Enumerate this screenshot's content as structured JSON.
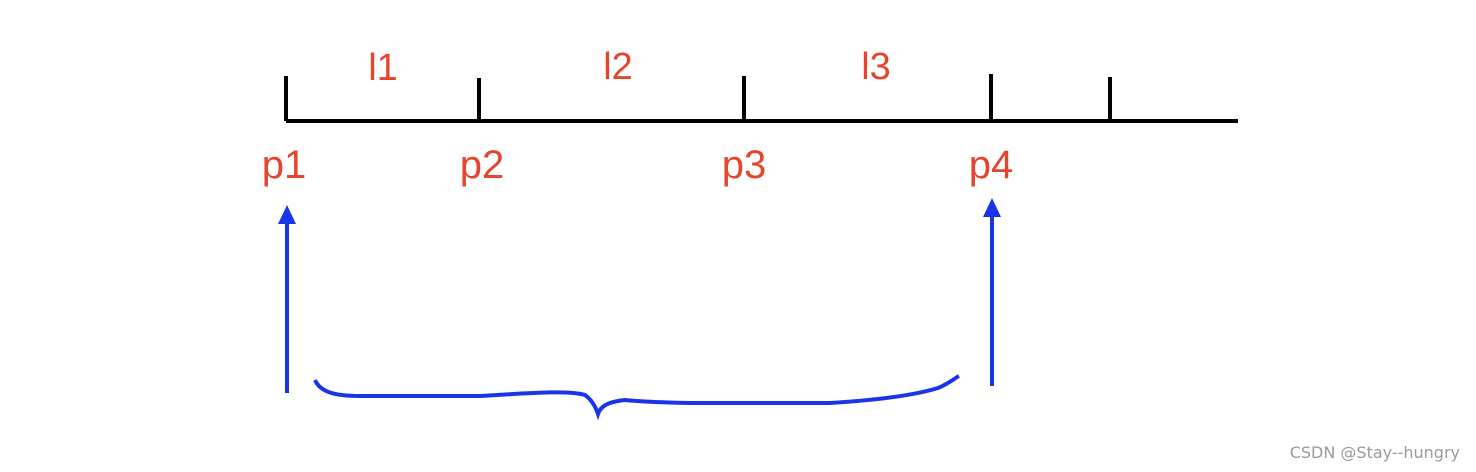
{
  "colors": {
    "line": "#000000",
    "label": "#e5452d",
    "arrow": "#1a35e8",
    "watermark": "#9a9a9a"
  },
  "points": [
    "p1",
    "p2",
    "p3",
    "p4"
  ],
  "segments": [
    "l1",
    "l2",
    "l3"
  ],
  "watermark": "CSDN @Stay--hungry"
}
